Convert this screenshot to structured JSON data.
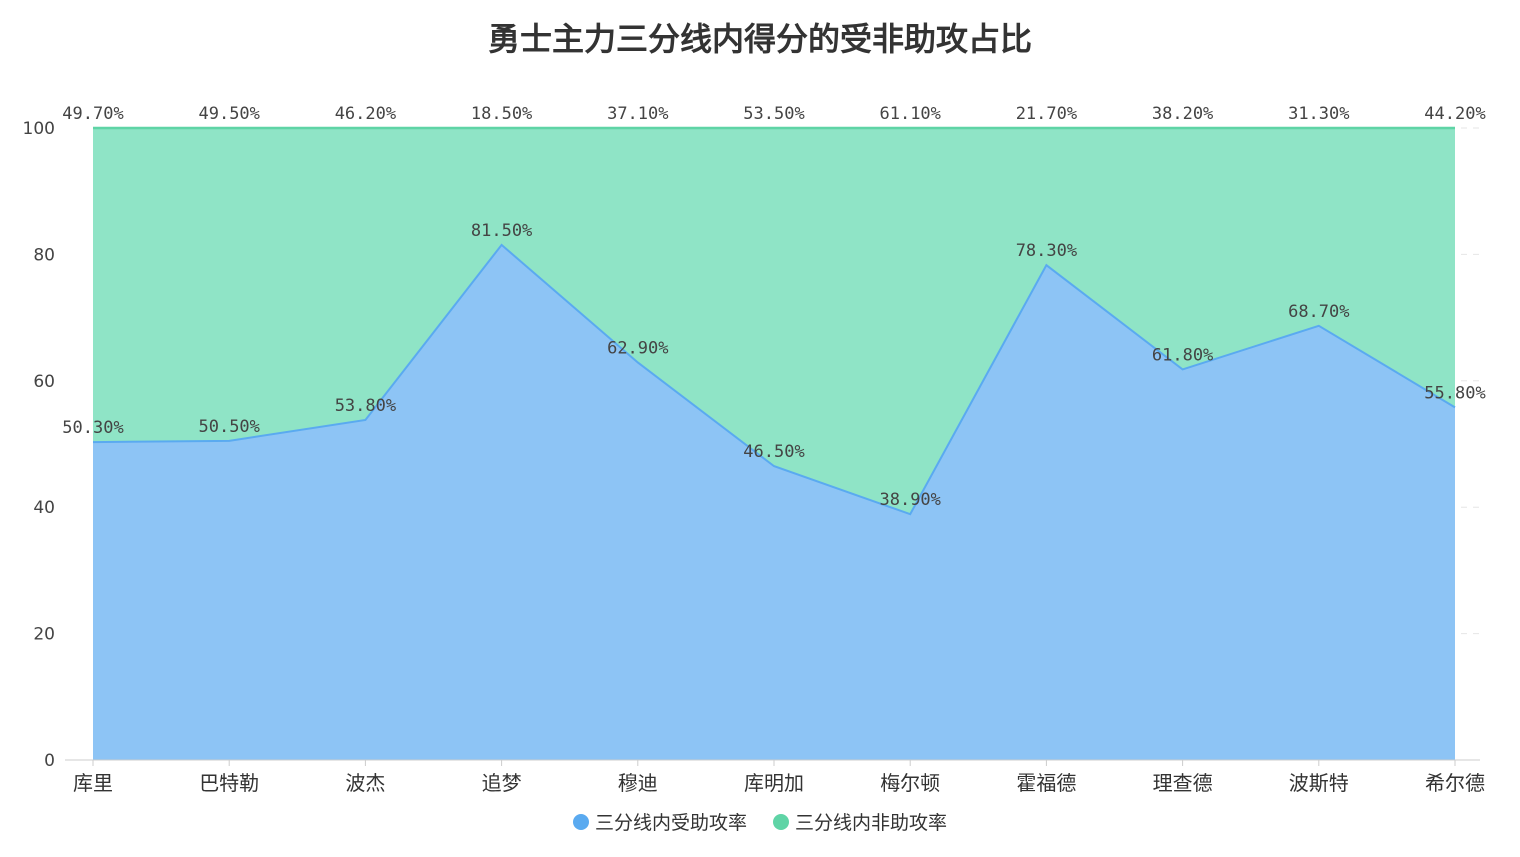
{
  "chart_data": {
    "type": "area",
    "title": "勇士主力三分线内得分的受非助攻占比",
    "categories": [
      "库里",
      "巴特勒",
      "波杰",
      "追梦",
      "穆迪",
      "库明加",
      "梅尔顿",
      "霍福德",
      "理查德",
      "波斯特",
      "希尔德"
    ],
    "series": [
      {
        "name": "三分线内受助攻率",
        "color": "#5aaaf0",
        "fill": "#8dc4f5",
        "values": [
          50.3,
          50.5,
          53.8,
          81.5,
          62.9,
          46.5,
          38.9,
          78.3,
          61.8,
          68.7,
          55.8
        ],
        "labels": [
          "50.30%",
          "50.50%",
          "53.80%",
          "81.50%",
          "62.90%",
          "46.50%",
          "38.90%",
          "78.30%",
          "61.80%",
          "68.70%",
          "55.80%"
        ]
      },
      {
        "name": "三分线内非助攻率",
        "color": "#5fd4a6",
        "fill": "#8fe4c6",
        "values": [
          49.7,
          49.5,
          46.2,
          18.5,
          37.1,
          53.5,
          61.1,
          21.7,
          38.2,
          31.3,
          44.2
        ],
        "labels": [
          "49.70%",
          "49.50%",
          "46.20%",
          "18.50%",
          "37.10%",
          "53.50%",
          "61.10%",
          "21.70%",
          "38.20%",
          "31.30%",
          "44.20%"
        ]
      }
    ],
    "stacked": true,
    "ylim": [
      0,
      100
    ],
    "yticks": [
      "0",
      "20",
      "40",
      "60",
      "80",
      "100"
    ],
    "xlabel": "",
    "ylabel": "",
    "grid": true,
    "legend_position": "bottom"
  }
}
